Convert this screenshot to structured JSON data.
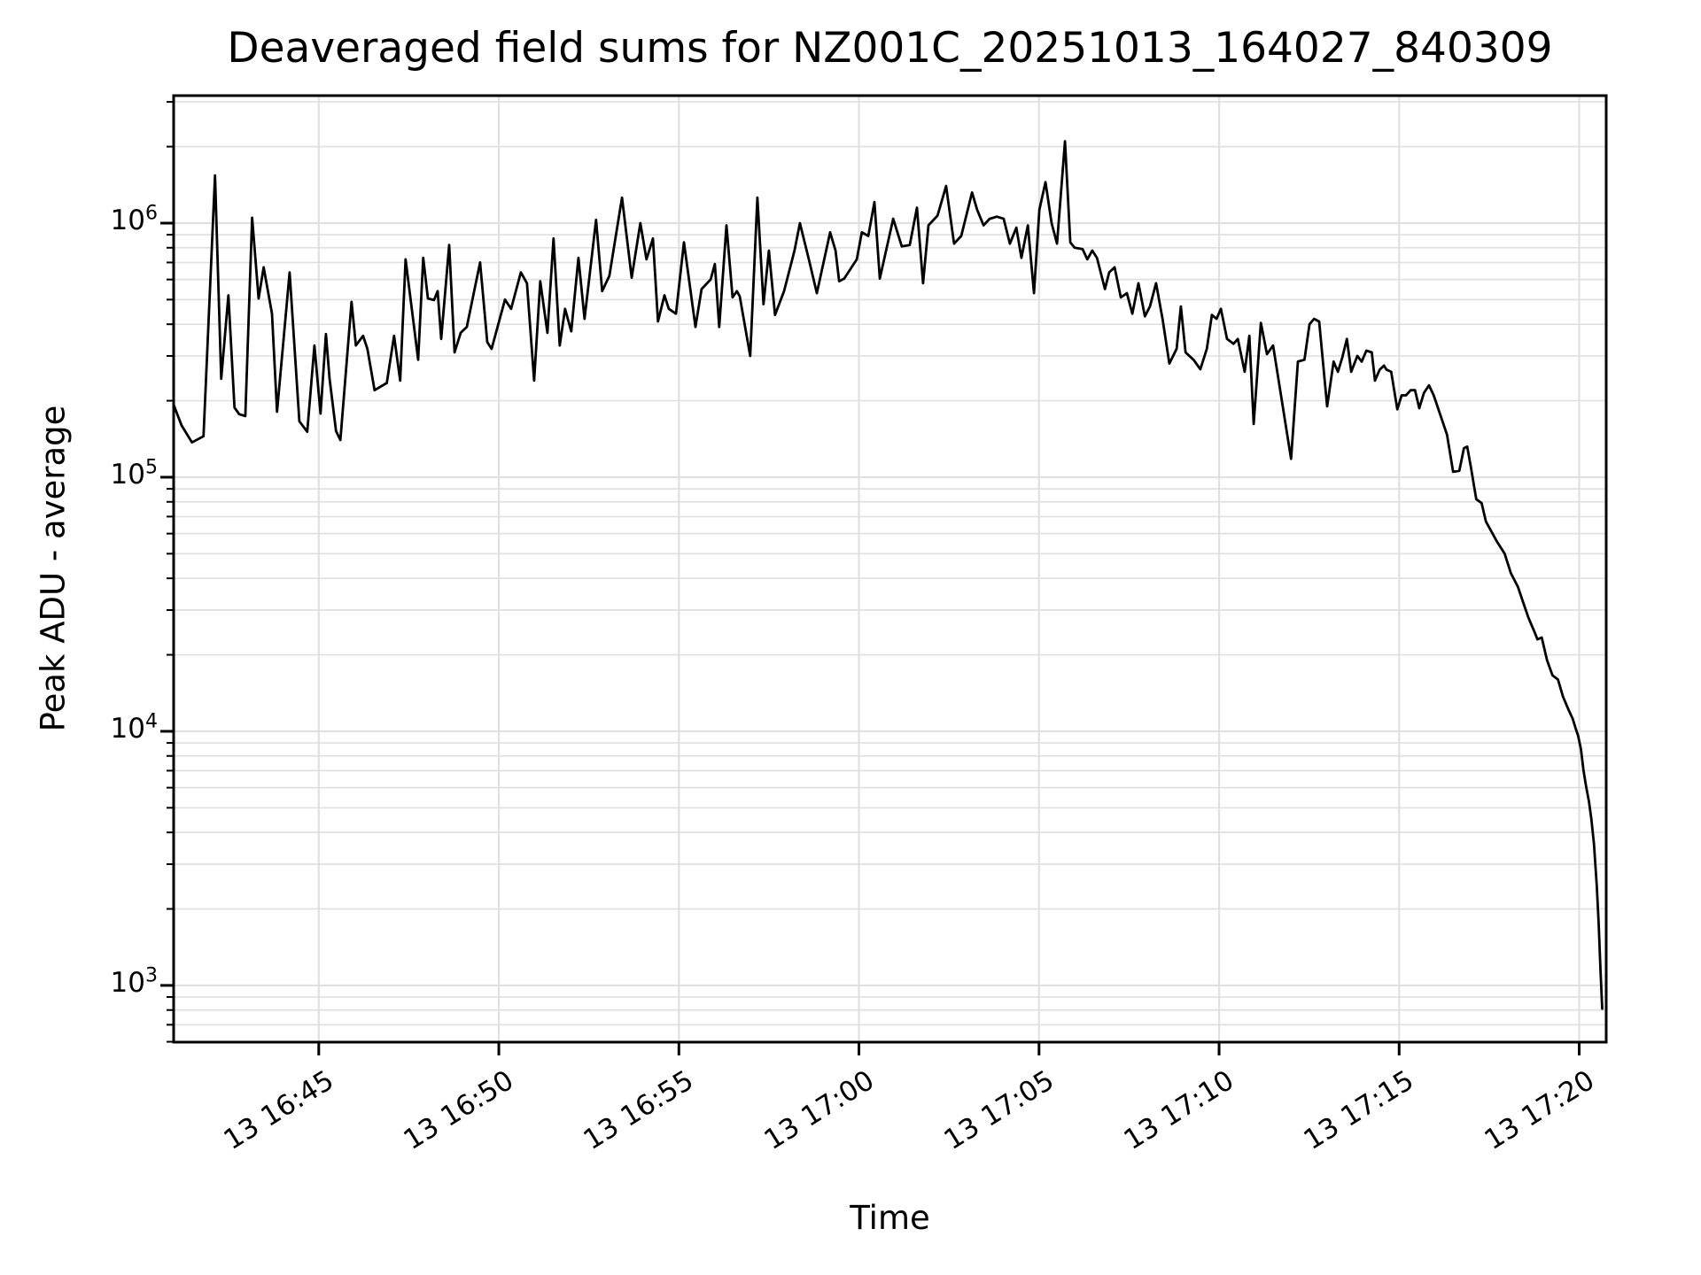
{
  "chart_data": {
    "type": "line",
    "title": "Deaveraged field sums for NZ001C_20251013_164027_840309",
    "xlabel": "Time",
    "ylabel": "Peak ADU - average",
    "y_scale": "log",
    "ylim": [
      598,
      3175000
    ],
    "x_unit": "minutes after 13 16:40",
    "xlim_minutes": [
      0.97,
      40.75
    ],
    "grid": "both-horizontal-log-and-vertical-major",
    "line_color": "#000000",
    "grid_color": "#e0e0e0",
    "spine_color": "#000000",
    "background_color": "#ffffff",
    "x_ticks": [
      {
        "minutes": 5,
        "label": "13 16:45"
      },
      {
        "minutes": 10,
        "label": "13 16:50"
      },
      {
        "minutes": 15,
        "label": "13 16:55"
      },
      {
        "minutes": 20,
        "label": "13 17:00"
      },
      {
        "minutes": 25,
        "label": "13 17:05"
      },
      {
        "minutes": 30,
        "label": "13 17:10"
      },
      {
        "minutes": 35,
        "label": "13 17:15"
      },
      {
        "minutes": 40,
        "label": "13 17:20"
      }
    ],
    "y_ticks": [
      {
        "exponent": 3,
        "label": "10³"
      },
      {
        "exponent": 4,
        "label": "10⁴"
      },
      {
        "exponent": 5,
        "label": "10⁵"
      },
      {
        "exponent": 6,
        "label": "10⁶"
      }
    ],
    "series": [
      {
        "name": "deaveraged field sum",
        "points": [
          [
            0.97,
            193000
          ],
          [
            1.19,
            160000
          ],
          [
            1.48,
            137000
          ],
          [
            1.8,
            145000
          ],
          [
            2.12,
            1540000
          ],
          [
            2.29,
            244000
          ],
          [
            2.49,
            520000
          ],
          [
            2.66,
            188000
          ],
          [
            2.79,
            177000
          ],
          [
            2.96,
            174000
          ],
          [
            3.15,
            1050000
          ],
          [
            3.33,
            505000
          ],
          [
            3.47,
            670000
          ],
          [
            3.7,
            440000
          ],
          [
            3.84,
            181000
          ],
          [
            4.19,
            640000
          ],
          [
            4.46,
            166000
          ],
          [
            4.68,
            151000
          ],
          [
            4.88,
            330000
          ],
          [
            5.05,
            178000
          ],
          [
            5.2,
            366000
          ],
          [
            5.3,
            244000
          ],
          [
            5.48,
            152000
          ],
          [
            5.6,
            140000
          ],
          [
            5.91,
            490000
          ],
          [
            6.03,
            330000
          ],
          [
            6.23,
            360000
          ],
          [
            6.35,
            320000
          ],
          [
            6.55,
            220000
          ],
          [
            6.89,
            235000
          ],
          [
            7.09,
            360000
          ],
          [
            7.26,
            240000
          ],
          [
            7.41,
            720000
          ],
          [
            7.76,
            290000
          ],
          [
            7.9,
            730000
          ],
          [
            8.03,
            505000
          ],
          [
            8.2,
            498000
          ],
          [
            8.3,
            540000
          ],
          [
            8.4,
            350000
          ],
          [
            8.62,
            820000
          ],
          [
            8.77,
            310000
          ],
          [
            8.94,
            370000
          ],
          [
            9.11,
            390000
          ],
          [
            9.48,
            700000
          ],
          [
            9.68,
            340000
          ],
          [
            9.8,
            320000
          ],
          [
            10.17,
            500000
          ],
          [
            10.34,
            460000
          ],
          [
            10.61,
            640000
          ],
          [
            10.78,
            580000
          ],
          [
            10.98,
            240000
          ],
          [
            11.15,
            590000
          ],
          [
            11.35,
            370000
          ],
          [
            11.52,
            870000
          ],
          [
            11.69,
            330000
          ],
          [
            11.84,
            460000
          ],
          [
            12.01,
            375000
          ],
          [
            12.21,
            730000
          ],
          [
            12.38,
            420000
          ],
          [
            12.7,
            1030000
          ],
          [
            12.87,
            540000
          ],
          [
            13.07,
            620000
          ],
          [
            13.42,
            1260000
          ],
          [
            13.69,
            610000
          ],
          [
            13.93,
            1000000
          ],
          [
            14.1,
            720000
          ],
          [
            14.28,
            870000
          ],
          [
            14.42,
            410000
          ],
          [
            14.6,
            520000
          ],
          [
            14.72,
            460000
          ],
          [
            14.92,
            440000
          ],
          [
            15.14,
            840000
          ],
          [
            15.46,
            390000
          ],
          [
            15.63,
            550000
          ],
          [
            15.88,
            600000
          ],
          [
            16.0,
            690000
          ],
          [
            16.12,
            390000
          ],
          [
            16.32,
            980000
          ],
          [
            16.49,
            510000
          ],
          [
            16.61,
            540000
          ],
          [
            16.69,
            515000
          ],
          [
            16.98,
            300000
          ],
          [
            17.18,
            1260000
          ],
          [
            17.35,
            480000
          ],
          [
            17.5,
            780000
          ],
          [
            17.67,
            435000
          ],
          [
            17.92,
            540000
          ],
          [
            18.21,
            780000
          ],
          [
            18.36,
            1000000
          ],
          [
            18.61,
            720000
          ],
          [
            18.83,
            530000
          ],
          [
            19.2,
            920000
          ],
          [
            19.35,
            780000
          ],
          [
            19.45,
            590000
          ],
          [
            19.59,
            605000
          ],
          [
            19.94,
            720000
          ],
          [
            20.08,
            920000
          ],
          [
            20.26,
            890000
          ],
          [
            20.43,
            1210000
          ],
          [
            20.58,
            605000
          ],
          [
            20.95,
            1040000
          ],
          [
            21.19,
            810000
          ],
          [
            21.41,
            820000
          ],
          [
            21.61,
            1150000
          ],
          [
            21.78,
            580000
          ],
          [
            21.93,
            980000
          ],
          [
            22.18,
            1070000
          ],
          [
            22.42,
            1400000
          ],
          [
            22.64,
            830000
          ],
          [
            22.84,
            890000
          ],
          [
            23.14,
            1320000
          ],
          [
            23.28,
            1130000
          ],
          [
            23.46,
            980000
          ],
          [
            23.63,
            1040000
          ],
          [
            23.83,
            1060000
          ],
          [
            24.02,
            1040000
          ],
          [
            24.19,
            830000
          ],
          [
            24.37,
            960000
          ],
          [
            24.51,
            730000
          ],
          [
            24.69,
            980000
          ],
          [
            24.86,
            530000
          ],
          [
            25.01,
            1130000
          ],
          [
            25.18,
            1450000
          ],
          [
            25.35,
            1000000
          ],
          [
            25.5,
            830000
          ],
          [
            25.72,
            2100000
          ],
          [
            25.87,
            840000
          ],
          [
            25.99,
            800000
          ],
          [
            26.21,
            790000
          ],
          [
            26.34,
            720000
          ],
          [
            26.48,
            780000
          ],
          [
            26.61,
            730000
          ],
          [
            26.83,
            550000
          ],
          [
            26.95,
            640000
          ],
          [
            27.1,
            670000
          ],
          [
            27.27,
            510000
          ],
          [
            27.44,
            530000
          ],
          [
            27.59,
            440000
          ],
          [
            27.76,
            580000
          ],
          [
            27.94,
            430000
          ],
          [
            28.08,
            470000
          ],
          [
            28.25,
            580000
          ],
          [
            28.43,
            420000
          ],
          [
            28.62,
            280000
          ],
          [
            28.82,
            320000
          ],
          [
            28.94,
            470000
          ],
          [
            29.07,
            310000
          ],
          [
            29.29,
            290000
          ],
          [
            29.48,
            266000
          ],
          [
            29.66,
            320000
          ],
          [
            29.8,
            435000
          ],
          [
            29.93,
            420000
          ],
          [
            30.05,
            460000
          ],
          [
            30.22,
            350000
          ],
          [
            30.4,
            335000
          ],
          [
            30.52,
            350000
          ],
          [
            30.71,
            260000
          ],
          [
            30.84,
            360000
          ],
          [
            30.96,
            162000
          ],
          [
            31.16,
            405000
          ],
          [
            31.33,
            305000
          ],
          [
            31.5,
            330000
          ],
          [
            32.0,
            118000
          ],
          [
            32.19,
            285000
          ],
          [
            32.37,
            290000
          ],
          [
            32.51,
            400000
          ],
          [
            32.64,
            420000
          ],
          [
            32.78,
            410000
          ],
          [
            33.0,
            190000
          ],
          [
            33.18,
            285000
          ],
          [
            33.3,
            260000
          ],
          [
            33.42,
            295000
          ],
          [
            33.55,
            350000
          ],
          [
            33.67,
            260000
          ],
          [
            33.84,
            300000
          ],
          [
            33.96,
            285000
          ],
          [
            34.09,
            315000
          ],
          [
            34.24,
            310000
          ],
          [
            34.33,
            240000
          ],
          [
            34.46,
            265000
          ],
          [
            34.58,
            275000
          ],
          [
            34.65,
            265000
          ],
          [
            34.78,
            260000
          ],
          [
            34.95,
            185000
          ],
          [
            35.07,
            210000
          ],
          [
            35.19,
            210000
          ],
          [
            35.32,
            220000
          ],
          [
            35.44,
            220000
          ],
          [
            35.56,
            187000
          ],
          [
            35.69,
            215000
          ],
          [
            35.83,
            230000
          ],
          [
            35.96,
            210000
          ],
          [
            36.18,
            170000
          ],
          [
            36.33,
            147000
          ],
          [
            36.5,
            105000
          ],
          [
            36.67,
            106000
          ],
          [
            36.8,
            130000
          ],
          [
            36.89,
            132000
          ],
          [
            36.99,
            110000
          ],
          [
            37.14,
            82000
          ],
          [
            37.29,
            79000
          ],
          [
            37.41,
            67000
          ],
          [
            37.71,
            56000
          ],
          [
            37.93,
            50000
          ],
          [
            38.1,
            42000
          ],
          [
            38.3,
            37000
          ],
          [
            38.45,
            32000
          ],
          [
            38.59,
            28000
          ],
          [
            38.77,
            24400
          ],
          [
            38.84,
            23000
          ],
          [
            38.96,
            23400
          ],
          [
            39.11,
            19000
          ],
          [
            39.26,
            16600
          ],
          [
            39.41,
            16000
          ],
          [
            39.55,
            13700
          ],
          [
            39.7,
            12200
          ],
          [
            39.82,
            11200
          ],
          [
            39.9,
            10300
          ],
          [
            39.97,
            9600
          ],
          [
            40.05,
            8500
          ],
          [
            40.12,
            7000
          ],
          [
            40.19,
            6100
          ],
          [
            40.27,
            5300
          ],
          [
            40.34,
            4500
          ],
          [
            40.41,
            3600
          ],
          [
            40.49,
            2450
          ],
          [
            40.54,
            1750
          ],
          [
            40.59,
            1160
          ],
          [
            40.64,
            810
          ]
        ]
      }
    ]
  }
}
